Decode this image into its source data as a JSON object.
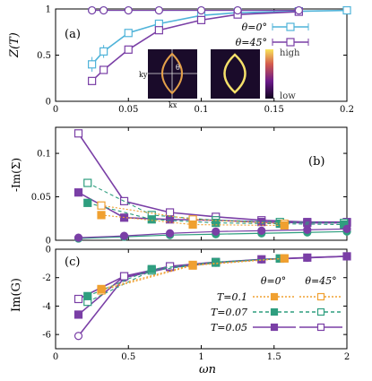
{
  "colors": {
    "theta0": "#4fb3d9",
    "theta45": "#7a3fa6",
    "t01": "#f0a030",
    "t007": "#2f9e7f",
    "t005": "#7a3fa6",
    "axis": "#000000"
  },
  "panels": {
    "a": {
      "tag": "(a)",
      "ylabel": "Z(T)",
      "xticks": [
        "0",
        "0.05",
        "0.1",
        "0.15",
        "0.2"
      ],
      "yticks": [
        "0",
        "0.5",
        "1"
      ],
      "legend": [
        {
          "label": "θ=0°",
          "series": "theta0"
        },
        {
          "label": "θ=45°",
          "series": "theta45"
        }
      ],
      "inset": {
        "high": "high",
        "low": "low",
        "kx": "kx",
        "ky": "ky",
        "theta": "θ"
      }
    },
    "b": {
      "tag": "(b)",
      "ylabel": "-Im(Σ)",
      "yticks": [
        "0",
        "0.05",
        "0.1"
      ]
    },
    "c": {
      "tag": "(c)",
      "ylabel": "Im(G)",
      "xlabel": "ωn",
      "xticks": [
        "0",
        "0.5",
        "1",
        "1.5",
        "2"
      ],
      "yticks": [
        "0",
        "-2",
        "-4",
        "-6"
      ],
      "legend_headers": {
        "theta0": "θ=0°",
        "theta45": "θ=45°"
      },
      "legend": [
        {
          "label": "T=0.1",
          "color_key": "t01",
          "style": "dotted"
        },
        {
          "label": "T=0.07",
          "color_key": "t007",
          "style": "dashdot"
        },
        {
          "label": "T=0.05",
          "color_key": "t005",
          "style": "solid"
        }
      ]
    }
  },
  "chart_data": [
    {
      "type": "line",
      "panel": "a",
      "ylabel": "Z(T)",
      "xlim": [
        0,
        0.2
      ],
      "ylim": [
        0,
        1
      ],
      "series": [
        {
          "name": "θ=0°",
          "x": [
            0.025,
            0.033,
            0.05,
            0.071,
            0.1,
            0.125,
            0.167,
            0.2
          ],
          "y": [
            0.4,
            0.54,
            0.74,
            0.84,
            0.93,
            0.96,
            0.975,
            0.985
          ],
          "yerr": [
            0.08,
            0.07,
            0.03,
            0.02,
            0.02,
            0.01,
            0.01,
            0.0
          ]
        },
        {
          "name": "θ=45°",
          "x": [
            0.025,
            0.033,
            0.05,
            0.071,
            0.1,
            0.125,
            0.167
          ],
          "y": [
            0.22,
            0.34,
            0.56,
            0.77,
            0.88,
            0.94,
            0.97
          ]
        },
        {
          "name": "upper θ=0°",
          "x": [
            0.025,
            0.033,
            0.05,
            0.071,
            0.1,
            0.125,
            0.167
          ],
          "y": [
            0.985,
            0.985,
            0.985,
            0.985,
            0.985,
            0.985,
            0.985
          ]
        },
        {
          "name": "upper θ=45°",
          "x": [
            0.025,
            0.033,
            0.05,
            0.071,
            0.1,
            0.125,
            0.167
          ],
          "y": [
            0.985,
            0.985,
            0.985,
            0.985,
            0.985,
            0.985,
            0.985
          ]
        }
      ]
    },
    {
      "type": "line",
      "panel": "b",
      "ylabel": "-Im(Σ)",
      "xlim": [
        0,
        2
      ],
      "ylim": [
        0,
        0.13
      ],
      "series": [
        {
          "name": "T=0.05 θ=45°",
          "x": [
            0.157,
            0.471,
            0.785,
            1.1,
            1.414,
            1.728,
            2.0
          ],
          "y": [
            0.123,
            0.045,
            0.032,
            0.027,
            0.023,
            0.021,
            0.021
          ]
        },
        {
          "name": "T=0.05 θ=0°",
          "x": [
            0.157,
            0.471,
            0.785,
            1.1,
            1.414,
            1.728,
            2.0
          ],
          "y": [
            0.055,
            0.026,
            0.024,
            0.023,
            0.021,
            0.02,
            0.02
          ]
        },
        {
          "name": "T=0.07 θ=45°",
          "x": [
            0.22,
            0.66,
            1.1,
            1.54,
            1.98
          ],
          "y": [
            0.066,
            0.029,
            0.023,
            0.021,
            0.02
          ]
        },
        {
          "name": "T=0.07 θ=0°",
          "x": [
            0.22,
            0.66,
            1.1,
            1.54,
            1.98
          ],
          "y": [
            0.043,
            0.024,
            0.02,
            0.019,
            0.018
          ]
        },
        {
          "name": "T=0.1 θ=45°",
          "x": [
            0.314,
            0.942,
            1.571
          ],
          "y": [
            0.04,
            0.024,
            0.019
          ]
        },
        {
          "name": "T=0.1 θ=0°",
          "x": [
            0.314,
            0.942,
            1.571
          ],
          "y": [
            0.029,
            0.018,
            0.017
          ]
        },
        {
          "name": "low θ=0°",
          "x": [
            0.157,
            0.471,
            0.785,
            1.1,
            1.414,
            1.728,
            2.0
          ],
          "y": [
            0.002,
            0.004,
            0.006,
            0.007,
            0.008,
            0.009,
            0.01
          ]
        },
        {
          "name": "low θ=45°",
          "x": [
            0.157,
            0.471,
            0.785,
            1.1,
            1.414,
            1.728,
            2.0
          ],
          "y": [
            0.003,
            0.005,
            0.008,
            0.01,
            0.011,
            0.012,
            0.013
          ]
        }
      ]
    },
    {
      "type": "line",
      "panel": "c",
      "ylabel": "Im(G)",
      "xlabel": "ωn",
      "xlim": [
        0,
        2
      ],
      "ylim": [
        -7,
        0
      ],
      "series": [
        {
          "name": "T=0.05 θ=45°",
          "x": [
            0.157,
            0.471,
            0.785,
            1.1,
            1.414,
            1.728,
            2.0
          ],
          "y": [
            -6.1,
            -2.0,
            -1.3,
            -0.95,
            -0.72,
            -0.6,
            -0.5
          ]
        },
        {
          "name": "T=0.05 θ=0°",
          "x": [
            0.157,
            0.471,
            0.785,
            1.1,
            1.414,
            1.728,
            2.0
          ],
          "y": [
            -4.6,
            -1.9,
            -1.25,
            -0.93,
            -0.71,
            -0.59,
            -0.5
          ]
        },
        {
          "name": "T=0.05 θ=0° upper",
          "x": [
            0.157,
            0.471,
            0.785,
            1.1
          ],
          "y": [
            -3.5,
            -1.9,
            -1.2,
            -0.9
          ]
        },
        {
          "name": "T=0.07 θ=45°",
          "x": [
            0.22,
            0.66,
            1.1,
            1.54
          ],
          "y": [
            -3.7,
            -1.5,
            -0.95,
            -0.66
          ]
        },
        {
          "name": "T=0.07 θ=0°",
          "x": [
            0.22,
            0.66,
            1.1,
            1.54
          ],
          "y": [
            -3.3,
            -1.4,
            -0.9,
            -0.65
          ]
        },
        {
          "name": "T=0.1 θ=45°",
          "x": [
            0.314,
            0.942,
            1.571
          ],
          "y": [
            -2.9,
            -1.15,
            -0.65
          ]
        },
        {
          "name": "T=0.1 θ=0°",
          "x": [
            0.314,
            0.942,
            1.571
          ],
          "y": [
            -2.8,
            -1.1,
            -0.64
          ]
        }
      ]
    }
  ]
}
